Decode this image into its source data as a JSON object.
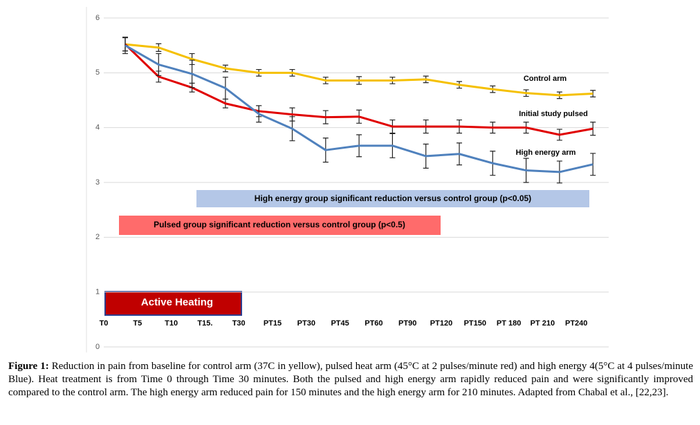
{
  "chart_data": {
    "type": "line",
    "categories": [
      "T0",
      "T5",
      "T10",
      "T15.",
      "T30",
      "PT15",
      "PT30",
      "PT45",
      "PT60",
      "PT90",
      "PT120",
      "PT150",
      "PT 180",
      "PT 210",
      "PT240"
    ],
    "series": [
      {
        "name": "Control arm",
        "color": "#f5c000",
        "values": [
          5.52,
          5.46,
          5.25,
          5.08,
          5.0,
          5.0,
          4.86,
          4.86,
          4.86,
          4.88,
          4.78,
          4.7,
          4.63,
          4.59,
          4.62
        ],
        "errors": [
          0.12,
          0.07,
          0.1,
          0.06,
          0.06,
          0.06,
          0.06,
          0.07,
          0.06,
          0.06,
          0.06,
          0.06,
          0.06,
          0.06,
          0.06
        ]
      },
      {
        "name": "Initial study pulsed",
        "color": "#e00000",
        "values": [
          5.52,
          4.93,
          4.73,
          4.44,
          4.3,
          4.24,
          4.19,
          4.2,
          4.02,
          4.02,
          4.02,
          4.0,
          4.0,
          3.87,
          3.98
        ],
        "errors": [
          0.12,
          0.1,
          0.08,
          0.08,
          0.1,
          0.12,
          0.12,
          0.12,
          0.12,
          0.12,
          0.12,
          0.1,
          0.1,
          0.1,
          0.12
        ]
      },
      {
        "name": "High energy arm",
        "color": "#4f81bd",
        "values": [
          5.5,
          5.15,
          4.98,
          4.72,
          4.25,
          3.98,
          3.59,
          3.67,
          3.67,
          3.48,
          3.52,
          3.35,
          3.22,
          3.19,
          3.33
        ],
        "errors": [
          0.15,
          0.2,
          0.25,
          0.2,
          0.15,
          0.22,
          0.22,
          0.2,
          0.22,
          0.22,
          0.2,
          0.22,
          0.22,
          0.2,
          0.2
        ]
      }
    ],
    "ylim": [
      0,
      6
    ],
    "yticks": [
      0,
      1,
      2,
      3,
      4,
      5,
      6
    ],
    "grid": true,
    "annotations": [
      "High energy group significant reduction versus control group (p<0.05)",
      "Pulsed group significant reduction versus control group (p<0.5)",
      "Active  Heating"
    ],
    "caption_label": "Figure 1:",
    "caption": "Reduction in pain from baseline for control arm (37C in yellow), pulsed heat arm (45°C at 2 pulses/minute red) and high energy 4(5°C at 4 pulses/minute Blue). Heat treatment is from Time 0 through Time 30 minutes. Both the pulsed and high energy arm rapidly reduced pain and were significantly improved compared to the control arm. The high energy arm reduced pain for 150 minutes and the high energy arm for 210 minutes. Adapted from Chabal et al., [22,23]."
  }
}
